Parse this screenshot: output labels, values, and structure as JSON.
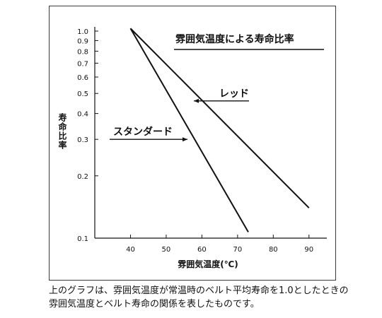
{
  "caption": {
    "line1": "上のグラフは、雰囲気温度が常温時のベルト平均寿命を1.0としたときの",
    "line2": "雰囲気温度とベルト寿命の関係を表したものです。"
  },
  "colors": {
    "line": "#111111",
    "frame": "#3a3a3a",
    "background": "#ffffff"
  },
  "chart_data": {
    "type": "line",
    "title": "雰囲気温度による寿命比率",
    "xlabel": "雰囲気温度(℃)",
    "ylabel": "寿命比率",
    "x_scale": "linear",
    "y_scale": "log",
    "xlim": [
      30,
      95
    ],
    "ylim": [
      0.1,
      1.0
    ],
    "x_ticks": [
      40,
      50,
      60,
      70,
      80,
      90
    ],
    "y_ticks": [
      1.0,
      0.9,
      0.8,
      0.7,
      0.6,
      0.5,
      0.4,
      0.3,
      0.2,
      0.1
    ],
    "y_tick_labels": [
      "1.0",
      "0.9",
      "0.8",
      "0.7",
      "0.6",
      "0.5",
      "0.4",
      "0.3",
      "0.2",
      "0.1"
    ],
    "grid": false,
    "series": [
      {
        "name": "レッド",
        "points": [
          [
            40,
            1.03
          ],
          [
            90,
            0.14
          ]
        ],
        "label_at": [
          62,
          0.46
        ]
      },
      {
        "name": "スタンダード",
        "points": [
          [
            40,
            1.03
          ],
          [
            73,
            0.107
          ]
        ],
        "label_at": [
          58,
          0.3
        ]
      }
    ]
  }
}
